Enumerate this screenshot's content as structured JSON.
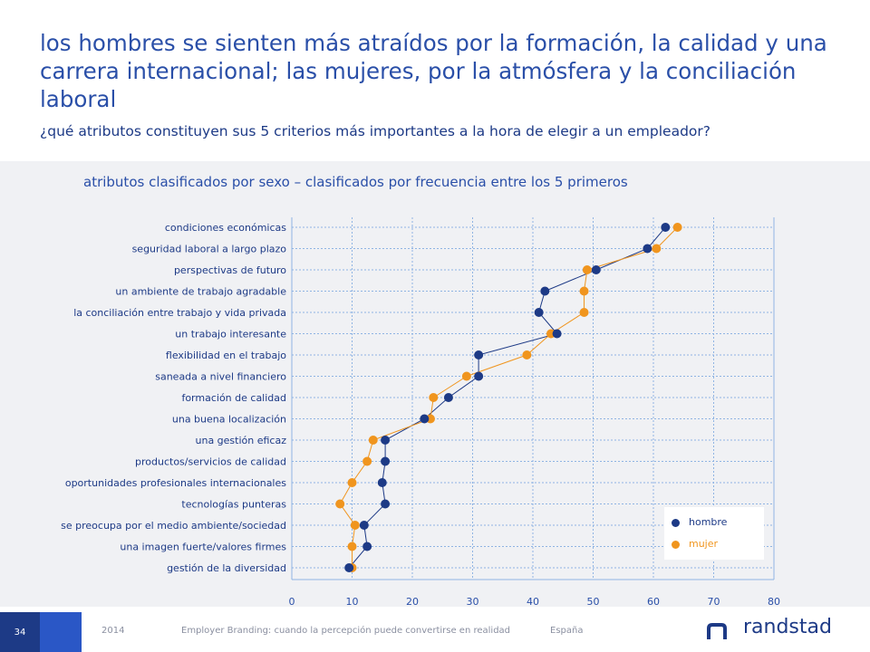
{
  "title": "los hombres se sienten más atraídos por la formación, la calidad y una carrera internacional; las mujeres, por la atmósfera y la conciliación laboral",
  "subtitle": "¿qué atributos constituyen sus 5 criterios más importantes a la hora de elegir a un empleador?",
  "chart_heading": "atributos clasificados por sexo – clasificados por frecuencia entre los 5 primeros",
  "footer": {
    "page_number": "34",
    "year": "2014",
    "report": "Employer Branding: cuando la percepción puede convertirse en realidad",
    "country": "España",
    "brand": "randstad"
  },
  "colors": {
    "hombre": "#1d3a86",
    "mujer": "#f0951e",
    "panel": "#f0f1f4",
    "grid": "#8fb4e3"
  },
  "chart_data": {
    "type": "line",
    "orientation": "horizontal",
    "categories": [
      "condiciones económicas",
      "seguridad laboral a largo plazo",
      "perspectivas de futuro",
      "un ambiente de trabajo agradable",
      "la conciliación entre trabajo y vida privada",
      "un trabajo interesante",
      "flexibilidad en el trabajo",
      "saneada a nivel financiero",
      "formación de calidad",
      "una buena localización",
      "una gestión eficaz",
      "productos/servicios de calidad",
      "oportunidades profesionales internacionales",
      "tecnologías punteras",
      "se preocupa por el medio ambiente/sociedad",
      "una imagen fuerte/valores firmes",
      "gestión de la diversidad"
    ],
    "series": [
      {
        "name": "hombre",
        "values": [
          62,
          59,
          50.5,
          42,
          41,
          44,
          31,
          31,
          26,
          22,
          15.5,
          15.5,
          15,
          15.5,
          12,
          12.5,
          9.5
        ]
      },
      {
        "name": "mujer",
        "values": [
          64,
          60.5,
          49,
          48.5,
          48.5,
          43,
          39,
          29,
          23.5,
          23,
          13.5,
          12.5,
          10,
          8,
          10.5,
          10,
          10
        ]
      }
    ],
    "xlim": [
      0,
      80
    ],
    "xticks": [
      0,
      10,
      20,
      30,
      40,
      50,
      60,
      70,
      80
    ],
    "grid": true,
    "legend_position": "bottom-right"
  }
}
